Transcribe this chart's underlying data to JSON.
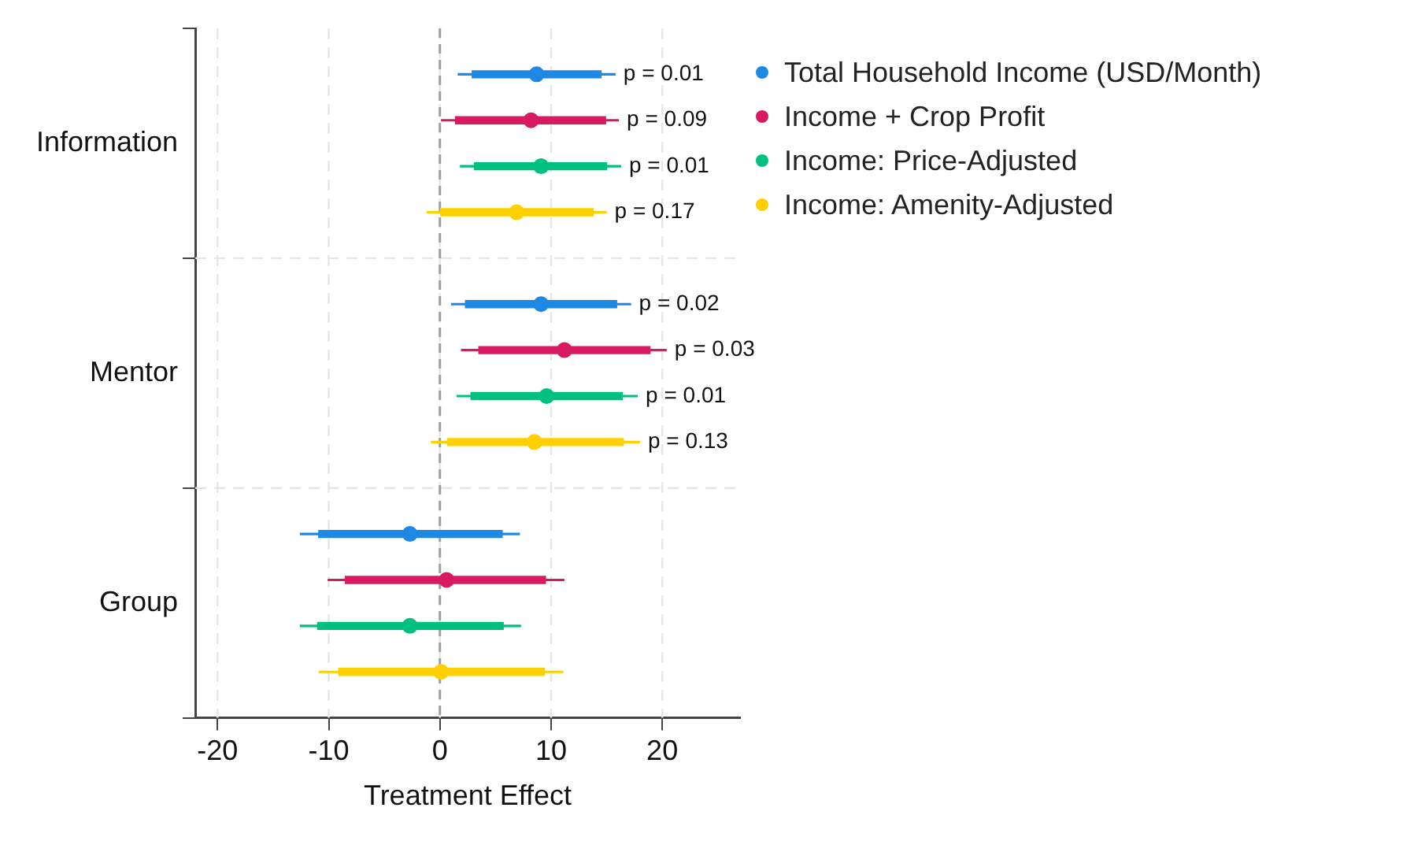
{
  "chart_data": {
    "type": "scatter",
    "orientation": "horizontal",
    "xlabel": "Treatment Effect",
    "categories": [
      "Information",
      "Mentor",
      "Group"
    ],
    "xlim": [
      -22,
      27
    ],
    "xticks": [
      -20,
      -10,
      0,
      10,
      20
    ],
    "grid": true,
    "legend": "right",
    "marker": "circle",
    "ref_lines": [
      {
        "axis": "x",
        "value": 0,
        "color": "#a0a0a0",
        "line_style": "dashed"
      }
    ],
    "annotations": [
      "p = 0.01",
      "p = 0.09",
      "p = 0.01",
      "p = 0.17",
      "p = 0.02",
      "p = 0.03",
      "p = 0.01",
      "p = 0.13"
    ],
    "series": [
      {
        "name": "Total Household Income (USD/Month)",
        "color": "#1e88e5",
        "values": [
          8.7,
          9.1,
          -2.7
        ],
        "errors": [
          [
            1.6,
            15.8
          ],
          [
            1.0,
            17.2
          ],
          [
            -12.6,
            7.2
          ]
        ]
      },
      {
        "name": "Income + Crop Profit",
        "color": "#d81b60",
        "values": [
          8.2,
          11.2,
          0.6
        ],
        "errors": [
          [
            0.1,
            16.1
          ],
          [
            1.9,
            20.4
          ],
          [
            -10.1,
            11.2
          ]
        ]
      },
      {
        "name": "Income: Price-Adjusted",
        "color": "#00c07f",
        "values": [
          9.1,
          9.6,
          -2.7
        ],
        "errors": [
          [
            1.8,
            16.3
          ],
          [
            1.5,
            17.8
          ],
          [
            -12.6,
            7.3
          ]
        ]
      },
      {
        "name": "Income: Amenity-Adjusted",
        "color": "#ffd000",
        "values": [
          6.9,
          8.5,
          0.1
        ],
        "errors": [
          [
            -1.2,
            15.0
          ],
          [
            -0.8,
            18.0
          ],
          [
            -10.9,
            11.1
          ]
        ]
      },
      {
        "type": "bar",
        "color": "#1e88e5",
        "base": [
          2.9,
          2.3,
          -10.9
        ],
        "values": [
          11.6,
          13.6,
          16.5
        ]
      },
      {
        "type": "bar",
        "color": "#d81b60",
        "base": [
          1.4,
          3.5,
          -8.5
        ],
        "values": [
          13.5,
          15.4,
          18.0
        ]
      },
      {
        "type": "bar",
        "color": "#00c07f",
        "base": [
          3.1,
          2.8,
          -11.0
        ],
        "values": [
          11.9,
          13.6,
          16.7
        ]
      },
      {
        "type": "bar",
        "color": "#ffd000",
        "base": [
          0.0,
          0.7,
          -9.1
        ],
        "values": [
          13.8,
          15.8,
          18.5
        ]
      }
    ]
  }
}
